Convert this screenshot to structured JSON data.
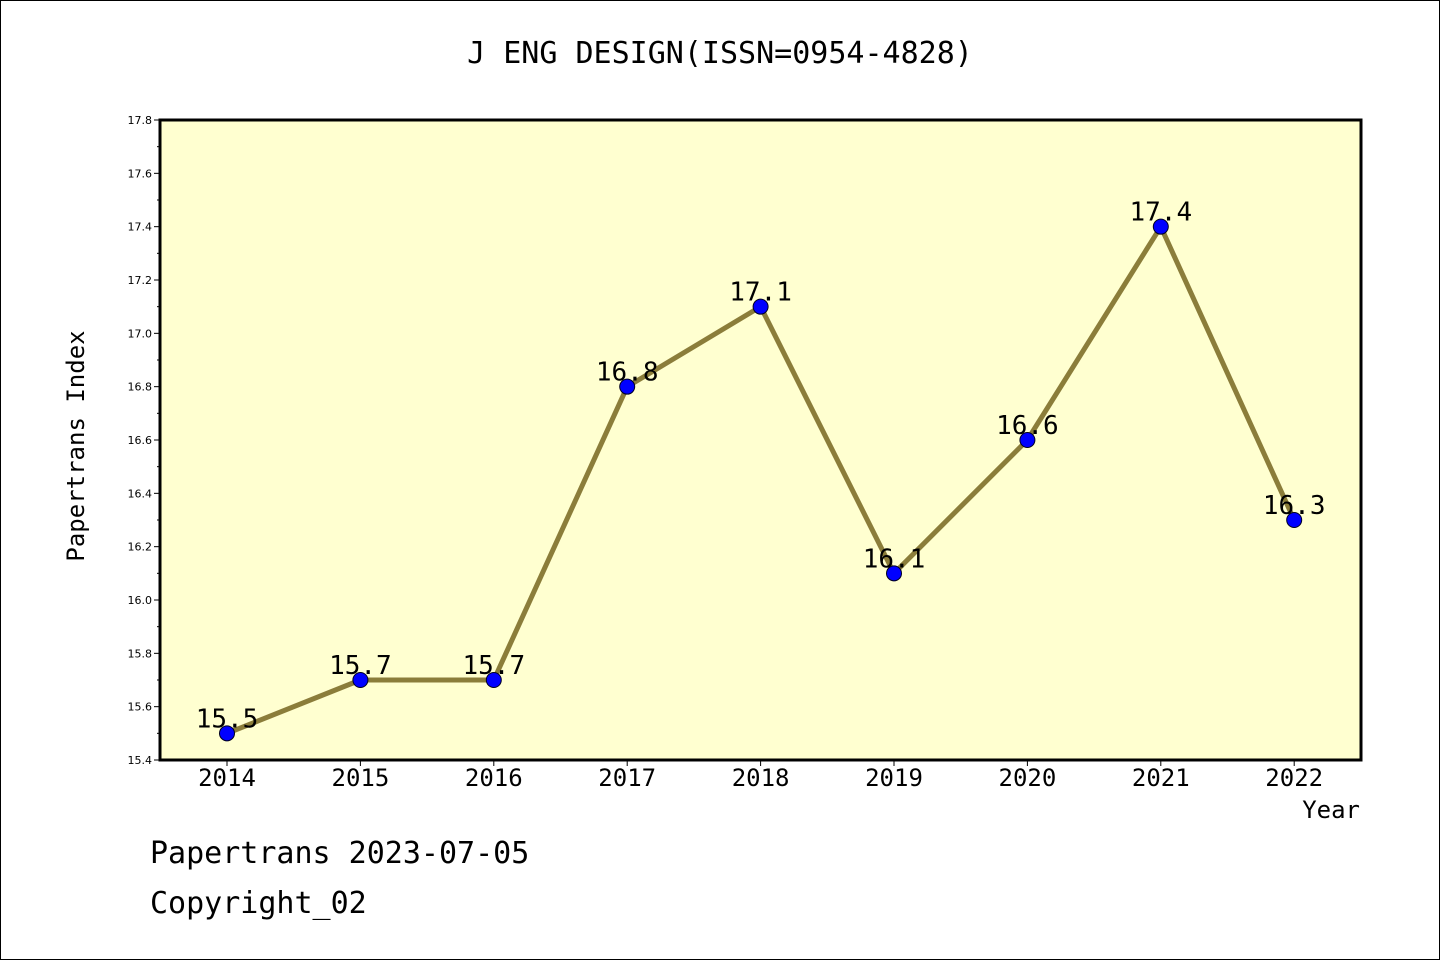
{
  "chart_data": {
    "type": "line",
    "title": "J ENG DESIGN(ISSN=0954-4828)",
    "xlabel": "Year",
    "ylabel": "Papertrans Index",
    "categories": [
      "2014",
      "2015",
      "2016",
      "2017",
      "2018",
      "2019",
      "2020",
      "2021",
      "2022"
    ],
    "values": [
      15.5,
      15.7,
      15.7,
      16.8,
      17.1,
      16.1,
      16.6,
      17.4,
      16.3
    ],
    "data_labels": [
      "15.5",
      "15.7",
      "15.7",
      "16.8",
      "17.1",
      "16.1",
      "16.6",
      "17.4",
      "16.3"
    ],
    "ylim": [
      15.4,
      17.8
    ],
    "y_ticks": [
      "15.4",
      "15.6",
      "15.8",
      "16.0",
      "16.2",
      "16.4",
      "16.6",
      "16.8",
      "17.0",
      "17.2",
      "17.4",
      "17.6",
      "17.8"
    ],
    "grid": false,
    "legend": "none"
  },
  "footer": {
    "line1": "Papertrans 2023-07-05",
    "line2": "Copyright_02"
  },
  "colors": {
    "plot_background": "#FFFFD0",
    "line": "#8B7D3A",
    "marker": "#0000FF",
    "axis": "#000000"
  }
}
